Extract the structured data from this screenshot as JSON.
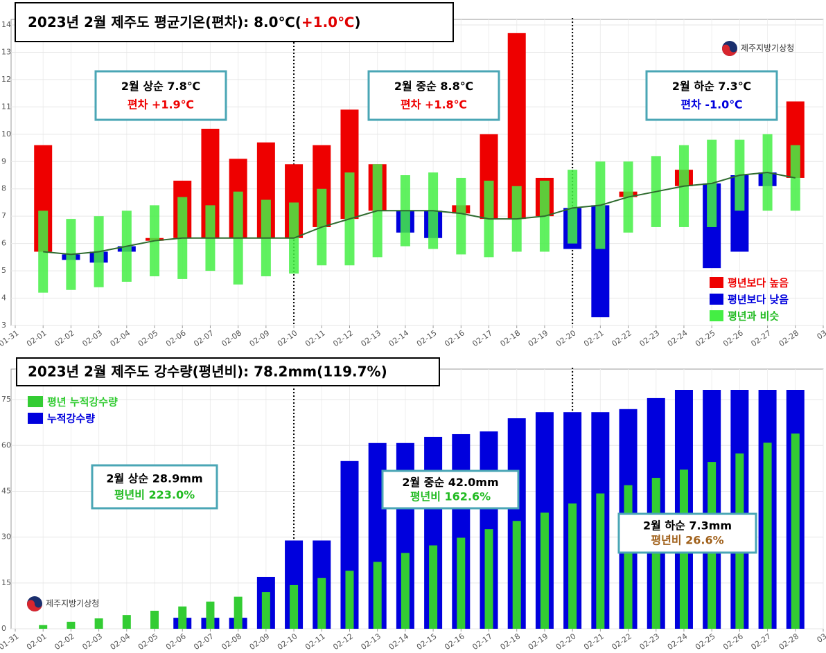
{
  "chart_data": [
    {
      "type": "range_bar",
      "title": "2023년 2월 제주도 평균기온(편차):  8.0℃(",
      "title_highlight": "+1.0℃",
      "title_end": ")",
      "title_highlight_color": "#e00000",
      "logo_text": "제주지방기상청",
      "categories": [
        "01-31",
        "02-01",
        "02-02",
        "02-03",
        "02-04",
        "02-05",
        "02-06",
        "02-07",
        "02-08",
        "02-09",
        "02-10",
        "02-11",
        "02-12",
        "02-13",
        "02-14",
        "02-15",
        "02-16",
        "02-17",
        "02-18",
        "02-19",
        "02-20",
        "02-21",
        "02-22",
        "02-23",
        "02-24",
        "02-25",
        "02-26",
        "02-27",
        "02-28",
        "03"
      ],
      "actual": [
        null,
        9.6,
        5.4,
        5.3,
        5.7,
        6.2,
        8.3,
        10.2,
        9.1,
        9.7,
        8.9,
        9.6,
        10.9,
        8.9,
        6.4,
        6.2,
        7.4,
        10.0,
        13.7,
        8.4,
        5.8,
        3.3,
        7.9,
        7.9,
        8.7,
        5.1,
        5.7,
        8.1,
        11.2,
        null
      ],
      "normal": [
        null,
        5.7,
        5.6,
        5.7,
        5.9,
        6.1,
        6.2,
        6.2,
        6.2,
        6.2,
        6.2,
        6.6,
        6.9,
        7.2,
        7.2,
        7.2,
        7.1,
        6.9,
        6.9,
        7.0,
        7.3,
        7.4,
        7.7,
        7.9,
        8.1,
        8.2,
        8.5,
        8.6,
        8.4,
        null
      ],
      "range_low": [
        null,
        4.2,
        4.3,
        4.4,
        4.6,
        4.8,
        4.7,
        5.0,
        4.5,
        4.8,
        4.9,
        5.2,
        5.2,
        5.5,
        5.9,
        5.8,
        5.6,
        5.5,
        5.7,
        5.7,
        6.0,
        5.8,
        6.4,
        6.6,
        6.6,
        6.6,
        7.2,
        7.2,
        7.2,
        null
      ],
      "range_high": [
        null,
        7.2,
        6.9,
        7.0,
        7.2,
        7.4,
        7.7,
        7.4,
        7.9,
        7.6,
        7.5,
        8.0,
        8.6,
        8.9,
        8.5,
        8.6,
        8.4,
        8.3,
        8.1,
        8.3,
        8.7,
        9.0,
        9.0,
        9.2,
        9.6,
        9.8,
        9.8,
        10.0,
        9.6,
        null
      ],
      "legend": [
        {
          "name": "평년보다 높음",
          "color": "#ee0000"
        },
        {
          "name": "평년보다 낮음",
          "color": "#0000dd"
        },
        {
          "name": "평년과 비슷",
          "color": "#44ee44"
        }
      ],
      "line_color": "#2e6b2e",
      "annotations": [
        {
          "label": "2월 상순 7.8℃",
          "detail": "편차 +1.9℃",
          "color": "#ee0000"
        },
        {
          "label": "2월 중순 8.8℃",
          "detail": "편차 +1.8℃",
          "color": "#ee0000"
        },
        {
          "label": "2월 하순 7.3℃",
          "detail": "편차 -1.0℃",
          "color": "#0000dd"
        }
      ],
      "ylim": [
        3,
        14
      ],
      "yticks": [
        3,
        4,
        5,
        6,
        7,
        8,
        9,
        10,
        11,
        12,
        13,
        14
      ],
      "grid": true
    },
    {
      "type": "bar",
      "title": "2023년 2월 제주도 강수량(평년비): 78.2mm(119.7%)",
      "logo_text": "제주지방기상청",
      "categories": [
        "01-31",
        "02-01",
        "02-02",
        "02-03",
        "02-04",
        "02-05",
        "02-06",
        "02-07",
        "02-08",
        "02-09",
        "02-10",
        "02-11",
        "02-12",
        "02-13",
        "02-14",
        "02-15",
        "02-16",
        "02-17",
        "02-18",
        "02-19",
        "02-20",
        "02-21",
        "02-22",
        "02-23",
        "02-24",
        "02-25",
        "02-26",
        "02-27",
        "02-28",
        "03"
      ],
      "series": [
        {
          "name": "평년 누적강수량",
          "color": "#33cc33",
          "values": [
            null,
            1.2,
            2.3,
            3.4,
            4.5,
            5.9,
            7.3,
            8.9,
            10.5,
            12.0,
            14.3,
            16.6,
            19.0,
            21.9,
            24.8,
            27.3,
            29.8,
            32.6,
            35.3,
            38.0,
            41.0,
            44.3,
            47.0,
            49.4,
            52.1,
            54.6,
            57.4,
            60.9,
            63.9,
            null
          ]
        },
        {
          "name": "누적강수량",
          "color": "#0000dd",
          "values": [
            null,
            0,
            0,
            0,
            0,
            0,
            3.6,
            3.6,
            3.6,
            17.0,
            28.9,
            28.9,
            54.9,
            60.8,
            60.8,
            62.8,
            63.7,
            64.6,
            68.9,
            70.9,
            70.9,
            70.9,
            71.9,
            75.5,
            78.2,
            78.2,
            78.2,
            78.2,
            78.2,
            null
          ]
        }
      ],
      "annotations": [
        {
          "label": "2월 상순 28.9mm",
          "detail": "평년비 223.0%",
          "color": "#22bb22"
        },
        {
          "label": "2월 중순 42.0mm",
          "detail": "평년비 162.6%",
          "color": "#22bb22"
        },
        {
          "label": "2월 하순 7.3mm",
          "detail": "평년비 26.6%",
          "color": "#a0601a"
        }
      ],
      "ylim": [
        0,
        85
      ],
      "yticks": [
        0,
        15,
        30,
        45,
        60,
        75
      ],
      "grid": true
    }
  ]
}
